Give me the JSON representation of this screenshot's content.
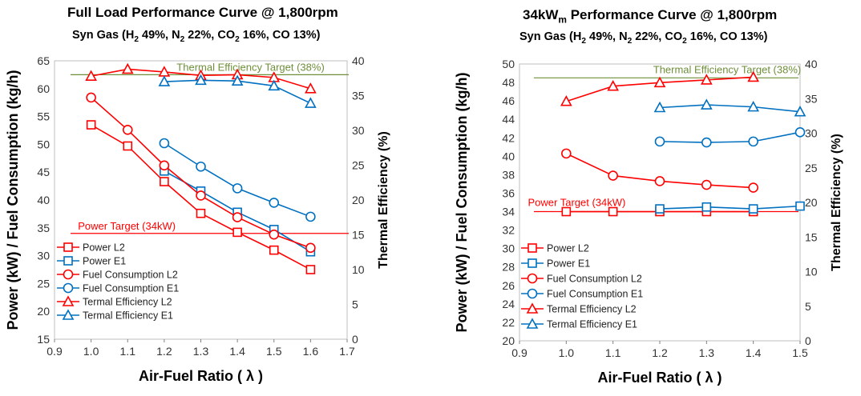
{
  "chart_data": [
    {
      "type": "line",
      "title": "Full Load Performance Curve @ 1,800rpm",
      "subtitle": "Syn Gas (H2 49%, N2 22%, CO2 16%, CO 13%)",
      "xlabel": "Air-Fuel Ratio ( λ )",
      "ylabel": "Power (kW) / Fuel Consumption (kg/h)",
      "y2label": "Thermal Efficiency (%)",
      "xlim": [
        0.9,
        1.7
      ],
      "xticks": [
        0.9,
        1.0,
        1.1,
        1.2,
        1.3,
        1.4,
        1.5,
        1.6,
        1.7
      ],
      "ylim": [
        15,
        65
      ],
      "yticks": [
        15,
        20,
        25,
        30,
        35,
        40,
        45,
        50,
        55,
        60,
        65
      ],
      "y2lim": [
        0,
        40
      ],
      "y2ticks": [
        0,
        5,
        10,
        15,
        20,
        25,
        30,
        35,
        40
      ],
      "grid": false,
      "legend_position": "bottom-left",
      "series": [
        {
          "name": "Power L2",
          "axis": "left",
          "marker": "square",
          "color": "#ff0000",
          "x": [
            1.0,
            1.1,
            1.2,
            1.3,
            1.4,
            1.5,
            1.6
          ],
          "y": [
            53.5,
            49.7,
            43.3,
            37.6,
            34.2,
            31.0,
            27.5
          ]
        },
        {
          "name": "Power E1",
          "axis": "left",
          "marker": "square",
          "color": "#0070c0",
          "x": [
            1.2,
            1.3,
            1.4,
            1.5,
            1.6
          ],
          "y": [
            45.2,
            41.6,
            37.8,
            34.7,
            30.7
          ]
        },
        {
          "name": "Fuel Consumption  L2",
          "axis": "left",
          "marker": "circle",
          "color": "#ff0000",
          "x": [
            1.0,
            1.1,
            1.2,
            1.3,
            1.4,
            1.5,
            1.6
          ],
          "y": [
            58.4,
            52.6,
            46.2,
            40.8,
            36.9,
            33.8,
            31.4
          ]
        },
        {
          "name": "Fuel Consumption  E1",
          "axis": "left",
          "marker": "circle",
          "color": "#0070c0",
          "x": [
            1.2,
            1.3,
            1.4,
            1.5,
            1.6
          ],
          "y": [
            50.2,
            46.0,
            42.1,
            39.5,
            37.0
          ]
        },
        {
          "name": "Termal Efficiency L2",
          "axis": "right",
          "marker": "triangle",
          "color": "#ff0000",
          "x": [
            1.0,
            1.1,
            1.2,
            1.3,
            1.4,
            1.5,
            1.6
          ],
          "y": [
            37.8,
            38.8,
            38.4,
            37.9,
            38.0,
            37.6,
            36.0
          ]
        },
        {
          "name": "Termal Efficiency E1",
          "axis": "right",
          "marker": "triangle",
          "color": "#0070c0",
          "x": [
            1.2,
            1.3,
            1.4,
            1.5,
            1.6
          ],
          "y": [
            37.0,
            37.2,
            37.1,
            36.4,
            33.9
          ]
        }
      ],
      "reference_lines": [
        {
          "label": "Thermal Efficiency Target (38%)",
          "axis": "right",
          "value": 38,
          "color": "#6f8f3a"
        },
        {
          "label": "Power Target (34kW)",
          "axis": "left",
          "value": 34,
          "color": "#ff0000"
        }
      ]
    },
    {
      "type": "line",
      "title": "34kWm Performance Curve @ 1,800rpm",
      "title_parts": [
        "34kW",
        "m",
        " Performance Curve @ 1,800rpm"
      ],
      "subtitle": "Syn Gas (H2 49%, N2 22%, CO2 16%, CO 13%)",
      "xlabel": "Air-Fuel Ratio ( λ )",
      "ylabel": "Power (kW) / Fuel Consumption (kg/h)",
      "y2label": "Thermal Efficiency (%)",
      "xlim": [
        0.9,
        1.5
      ],
      "xticks": [
        0.9,
        1.0,
        1.1,
        1.2,
        1.3,
        1.4,
        1.5
      ],
      "ylim": [
        20,
        50
      ],
      "yticks": [
        20,
        22,
        24,
        26,
        28,
        30,
        32,
        34,
        36,
        38,
        40,
        42,
        44,
        46,
        48,
        50
      ],
      "y2lim": [
        0,
        40
      ],
      "y2ticks": [
        0,
        5,
        10,
        15,
        20,
        25,
        30,
        35,
        40
      ],
      "grid": false,
      "legend_position": "bottom-left",
      "series": [
        {
          "name": "Power L2",
          "axis": "left",
          "marker": "square",
          "color": "#ff0000",
          "x": [
            1.0,
            1.1,
            1.2,
            1.3,
            1.4
          ],
          "y": [
            34.0,
            34.0,
            34.0,
            34.0,
            34.0
          ]
        },
        {
          "name": "Power E1",
          "axis": "left",
          "marker": "square",
          "color": "#0070c0",
          "x": [
            1.2,
            1.3,
            1.4,
            1.5
          ],
          "y": [
            34.3,
            34.5,
            34.3,
            34.6
          ]
        },
        {
          "name": "Fuel Consumption  L2",
          "axis": "left",
          "marker": "circle",
          "color": "#ff0000",
          "x": [
            1.0,
            1.1,
            1.2,
            1.3,
            1.4
          ],
          "y": [
            40.3,
            37.9,
            37.3,
            36.9,
            36.6
          ]
        },
        {
          "name": "Fuel Consumption  E1",
          "axis": "left",
          "marker": "circle",
          "color": "#0070c0",
          "x": [
            1.2,
            1.3,
            1.4,
            1.5
          ],
          "y": [
            41.6,
            41.5,
            41.6,
            42.6
          ]
        },
        {
          "name": "Termal Efficiency L2",
          "axis": "right",
          "marker": "triangle",
          "color": "#ff0000",
          "x": [
            1.0,
            1.1,
            1.2,
            1.3,
            1.4
          ],
          "y": [
            34.6,
            36.8,
            37.3,
            37.7,
            38.1
          ]
        },
        {
          "name": "Termal Efficiency E1",
          "axis": "right",
          "marker": "triangle",
          "color": "#0070c0",
          "x": [
            1.2,
            1.3,
            1.4,
            1.5
          ],
          "y": [
            33.7,
            34.1,
            33.8,
            33.1
          ]
        }
      ],
      "reference_lines": [
        {
          "label": "Thermal Efficiency Target (38%)",
          "axis": "right",
          "value": 38,
          "color": "#6f8f3a"
        },
        {
          "label": "Power Target (34kW)",
          "axis": "left",
          "value": 34,
          "color": "#ff0000"
        }
      ]
    }
  ],
  "subtitle_parts": [
    "Syn Gas (H",
    "2",
    " 49%, N",
    "2",
    " 22%, CO",
    "2",
    " 16%, CO 13%)"
  ],
  "title_left": "Full Load Performance Curve @ 1,800rpm"
}
